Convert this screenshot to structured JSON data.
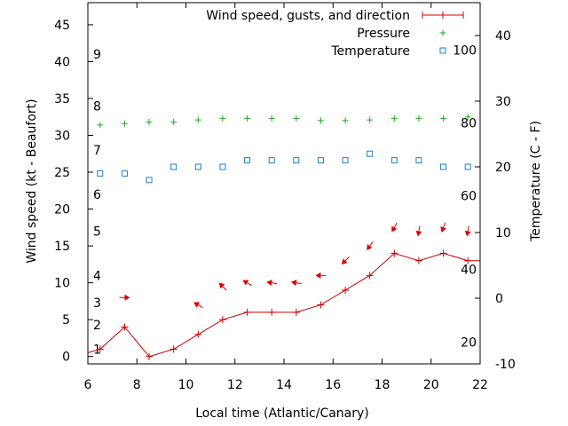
{
  "chart_data": {
    "type": "line",
    "xlabel": "Local time (Atlantic/Canary)",
    "ylabel_left": "Wind speed (kt - Beaufort)",
    "ylabel_right": "Temperature (C - F)",
    "xlim": [
      6,
      22
    ],
    "ylim_left": [
      -1,
      48
    ],
    "ylim_right": [
      -10,
      45
    ],
    "x_ticks": [
      6,
      8,
      10,
      12,
      14,
      16,
      18,
      20,
      22
    ],
    "y_ticks_left": [
      0,
      5,
      10,
      15,
      20,
      25,
      30,
      35,
      40,
      45
    ],
    "y_ticks_right": [
      -10,
      0,
      10,
      20,
      30,
      40
    ],
    "beaufort_labels": [
      {
        "label": "1",
        "kt": 1
      },
      {
        "label": "2",
        "kt": 4.3
      },
      {
        "label": "3",
        "kt": 7.3
      },
      {
        "label": "4",
        "kt": 11
      },
      {
        "label": "5",
        "kt": 17
      },
      {
        "label": "6",
        "kt": 22
      },
      {
        "label": "7",
        "kt": 28
      },
      {
        "label": "8",
        "kt": 34
      },
      {
        "label": "9",
        "kt": 41
      }
    ],
    "fahrenheit_labels": [
      {
        "label": "20",
        "c": -6.7
      },
      {
        "label": "40",
        "c": 4.4
      },
      {
        "label": "60",
        "c": 15.6
      },
      {
        "label": "80",
        "c": 26.7
      },
      {
        "label": "100",
        "c": 37.8
      }
    ],
    "legend": [
      "Wind speed, gusts, and direction",
      "Pressure",
      "Temperature"
    ],
    "legend_position": "top-right",
    "grid": false,
    "colors": {
      "wind": "#cc0000",
      "pressure": "#22aa22",
      "temperature": "#1a7fd4",
      "arrow": "#dd0000"
    },
    "series": [
      {
        "name": "Wind speed, gusts, and direction",
        "x": [
          6.5,
          7.5,
          8.5,
          9.5,
          10.5,
          11.5,
          12.5,
          13.5,
          14.5,
          15.5,
          16.5,
          17.5,
          18.5,
          19.5,
          20.5,
          21.5
        ],
        "values": [
          1,
          4,
          0,
          1,
          3,
          5,
          6,
          6,
          6,
          7,
          9,
          11,
          14,
          13,
          14,
          13
        ]
      },
      {
        "name": "Pressure",
        "x": [
          6.5,
          7.5,
          8.5,
          9.5,
          10.5,
          11.5,
          12.5,
          13.5,
          14.5,
          15.5,
          16.5,
          17.5,
          18.5,
          19.5,
          20.5,
          21.5
        ],
        "values": [
          31.4,
          31.6,
          31.8,
          31.8,
          32.1,
          32.3,
          32.3,
          32.3,
          32.3,
          32.0,
          32.0,
          32.1,
          32.3,
          32.3,
          32.3,
          32.5
        ]
      },
      {
        "name": "Temperature",
        "x": [
          6.5,
          7.5,
          8.5,
          9.5,
          10.5,
          11.5,
          12.5,
          13.5,
          14.5,
          15.5,
          16.5,
          17.5,
          18.5,
          19.5,
          20.5,
          21.5
        ],
        "values": [
          19,
          19,
          18,
          20,
          20,
          20,
          21,
          21,
          21,
          21,
          21,
          22,
          21,
          21,
          20,
          20
        ]
      }
    ],
    "wind_arrows": {
      "x": [
        7.5,
        10.5,
        11.5,
        12.5,
        13.5,
        14.5,
        15.5,
        16.5,
        17.5,
        18.5,
        19.5,
        20.5,
        21.5
      ],
      "y": [
        8,
        7,
        9.5,
        10,
        10,
        10,
        11,
        13,
        15,
        17.5,
        17,
        17.5,
        17
      ],
      "direction_deg": [
        270,
        120,
        135,
        120,
        100,
        100,
        90,
        45,
        35,
        30,
        10,
        20,
        10
      ]
    }
  }
}
